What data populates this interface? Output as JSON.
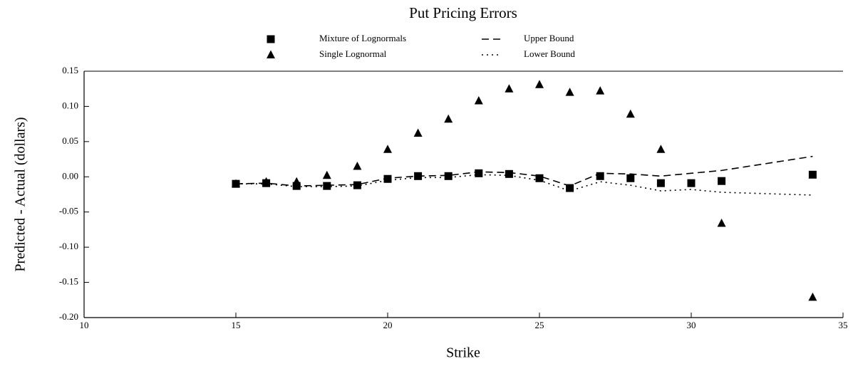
{
  "chart_data": {
    "type": "line",
    "title": "Put Pricing Errors",
    "x_label": "Strike",
    "y_label": "Predicted - Actual (dollars)",
    "x": [
      15,
      16,
      17,
      18,
      19,
      20,
      21,
      22,
      23,
      24,
      25,
      26,
      27,
      28,
      29,
      30,
      31,
      34
    ],
    "series": [
      {
        "name": "Mixture of Lognormals",
        "color": "#000000",
        "mode": "markers",
        "marker": "square",
        "values": [
          -0.01,
          -0.009,
          -0.013,
          -0.013,
          -0.012,
          -0.003,
          0.001,
          0.001,
          0.005,
          0.004,
          -0.002,
          -0.016,
          0.001,
          -0.002,
          -0.009,
          -0.009,
          -0.006,
          0.003
        ]
      },
      {
        "name": "Single Lognormal",
        "color": "#000000",
        "mode": "markers",
        "marker": "triangle",
        "values": [
          -0.01,
          -0.007,
          -0.007,
          0.002,
          0.015,
          0.039,
          0.062,
          0.082,
          0.108,
          0.125,
          0.131,
          0.12,
          0.122,
          0.089,
          0.039,
          null,
          -0.066,
          -0.171
        ]
      },
      {
        "name": "Upper Bound",
        "color": "#000000",
        "mode": "line",
        "dash": "dashed",
        "values": [
          -0.01,
          -0.009,
          -0.013,
          -0.012,
          -0.011,
          -0.002,
          0.001,
          0.002,
          0.007,
          0.006,
          0.001,
          -0.013,
          0.005,
          0.004,
          0.001,
          0.005,
          0.009,
          0.029
        ]
      },
      {
        "name": "Lower Bound",
        "color": "#000000",
        "mode": "line",
        "dash": "dotted",
        "values": [
          -0.01,
          -0.01,
          -0.014,
          -0.014,
          -0.013,
          -0.005,
          -0.001,
          -0.001,
          0.003,
          0.002,
          -0.005,
          -0.02,
          -0.007,
          -0.012,
          -0.02,
          -0.018,
          -0.022,
          -0.026
        ]
      }
    ],
    "xlim": [
      10,
      35
    ],
    "xticks": [
      10,
      15,
      20,
      25,
      30,
      35
    ],
    "ylim": [
      -0.2,
      0.15
    ],
    "yticks": [
      -0.2,
      -0.15,
      -0.1,
      -0.05,
      0,
      0.05,
      0.1,
      0.15
    ],
    "ytick_labels": [
      "-0.20",
      "-0.15",
      "-0.10",
      "-0.05",
      "0.00",
      "0.05",
      "0.10",
      "0.15"
    ],
    "grid": false
  }
}
